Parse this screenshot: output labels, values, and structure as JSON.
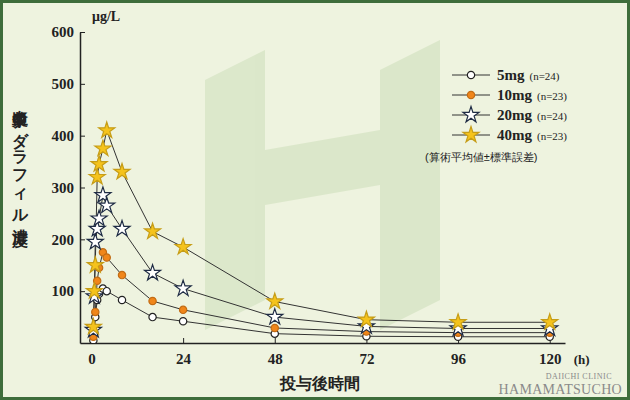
{
  "chart_data": {
    "type": "line",
    "y_label": "血漿中タダラフィル濃度",
    "y_unit": "μg/L",
    "x_label": "投与後時間",
    "x_unit": "(h)",
    "annotations": [
      "(算術平均値±標準誤差)"
    ],
    "credit": [
      "DAIICHI CLINIC",
      "HAMAMATSUCHO"
    ],
    "x": [
      0.5,
      0.75,
      1,
      1.5,
      2,
      3,
      4,
      8,
      16,
      24,
      48,
      72,
      96,
      120
    ],
    "series": [
      {
        "name": "5mg (n=24)",
        "color": "#222222",
        "marker": "circle-open",
        "values": [
          5,
          20,
          50,
          83,
          95,
          105,
          100,
          83,
          50,
          42,
          18,
          13,
          12,
          12
        ]
      },
      {
        "name": "10mg (n=23)",
        "color": "#f0861a",
        "marker": "circle",
        "values": [
          12,
          30,
          60,
          120,
          145,
          175,
          165,
          131,
          81,
          64,
          29,
          22,
          20,
          20
        ]
      },
      {
        "name": "20mg (n=24)",
        "color": "#1e2b44",
        "marker": "star-open",
        "values": [
          25,
          90,
          195,
          220,
          240,
          285,
          265,
          220,
          135,
          105,
          50,
          32,
          28,
          28
        ]
      },
      {
        "name": "40mg (n=23)",
        "color": "#f5c31c",
        "marker": "star",
        "values": [
          31,
          100,
          150,
          320,
          345,
          375,
          410,
          330,
          215,
          185,
          80,
          45,
          40,
          40
        ]
      }
    ],
    "xlim": [
      -3,
      124
    ],
    "xticks": [
      0,
      24,
      48,
      72,
      96,
      120
    ],
    "ylim": [
      0,
      600
    ],
    "yticks": [
      100,
      200,
      300,
      400,
      500,
      600
    ],
    "grid": false,
    "legend": "upper right",
    "line_style": "solid"
  }
}
